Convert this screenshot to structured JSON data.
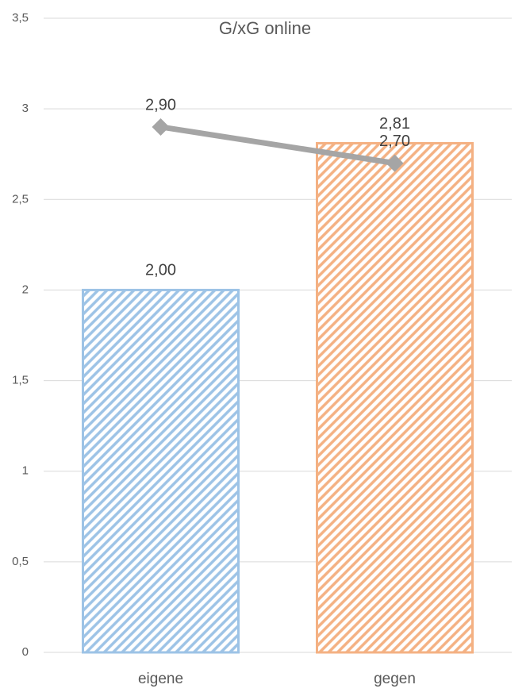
{
  "chart_data": {
    "type": "combo",
    "title": "G/xG online",
    "categories": [
      "eigene",
      "gegen"
    ],
    "series": [
      {
        "type": "bar",
        "colors": [
          "#9dc3e6",
          "#f4b183"
        ],
        "values": [
          2.0,
          2.81
        ],
        "value_labels": [
          "2,00",
          "2,81"
        ]
      },
      {
        "type": "line",
        "color": "#a5a5a5",
        "values": [
          2.9,
          2.7
        ],
        "value_labels": [
          "2,90",
          "2,70"
        ]
      }
    ],
    "ylim": [
      0,
      3.5
    ],
    "yticks": [
      0,
      {
        "value": 0.5,
        "label": "0,5"
      },
      1,
      {
        "value": 1.5,
        "label": "1,5"
      },
      2,
      {
        "value": 2.5,
        "label": "2,5"
      },
      3,
      {
        "value": 3.5,
        "label": "3,5"
      }
    ],
    "grid": true
  }
}
